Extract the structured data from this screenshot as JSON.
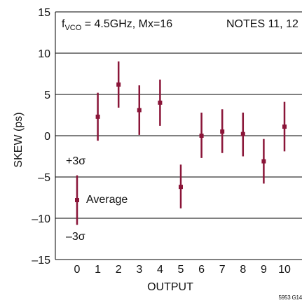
{
  "chart_data": {
    "type": "errorbar",
    "title": "",
    "xlabel": "OUTPUT",
    "ylabel": "SKEW (ps)",
    "xlim": [
      -0.5,
      10.5
    ],
    "ylim": [
      -15,
      15
    ],
    "xticks": [
      0,
      1,
      2,
      3,
      4,
      5,
      6,
      7,
      8,
      9,
      10
    ],
    "yticks": [
      -15,
      -10,
      -5,
      0,
      5,
      10,
      15
    ],
    "ytick_labels": [
      "–15",
      "–10",
      "–5",
      "0",
      "5",
      "10",
      "15"
    ],
    "grid": "horizontal",
    "points": [
      {
        "x": 0,
        "mean": -7.8,
        "plus3sigma": -4.8,
        "minus3sigma": -10.8
      },
      {
        "x": 1,
        "mean": 2.3,
        "plus3sigma": 5.2,
        "minus3sigma": -0.6
      },
      {
        "x": 2,
        "mean": 6.2,
        "plus3sigma": 9.0,
        "minus3sigma": 3.4
      },
      {
        "x": 3,
        "mean": 3.1,
        "plus3sigma": 6.1,
        "minus3sigma": 0.1
      },
      {
        "x": 4,
        "mean": 4.0,
        "plus3sigma": 6.8,
        "minus3sigma": 1.2
      },
      {
        "x": 5,
        "mean": -6.2,
        "plus3sigma": -3.5,
        "minus3sigma": -8.8
      },
      {
        "x": 6,
        "mean": 0.0,
        "plus3sigma": 2.8,
        "minus3sigma": -2.7
      },
      {
        "x": 7,
        "mean": 0.5,
        "plus3sigma": 3.2,
        "minus3sigma": -2.1
      },
      {
        "x": 8,
        "mean": 0.2,
        "plus3sigma": 2.8,
        "minus3sigma": -2.5
      },
      {
        "x": 9,
        "mean": -3.1,
        "plus3sigma": -0.4,
        "minus3sigma": -5.8
      },
      {
        "x": 10,
        "mean": 1.1,
        "plus3sigma": 4.1,
        "minus3sigma": -1.9
      }
    ],
    "series_color": "#8a1538",
    "annotations": {
      "condition_main": "f",
      "condition_sub": "VCO",
      "condition_rest": " = 4.5GHz, Mx=16",
      "notes": "NOTES 11, 12",
      "plus_label": "+3σ",
      "average_label": "Average",
      "minus_label": "–3σ"
    },
    "figure_id": "5953 G14"
  }
}
